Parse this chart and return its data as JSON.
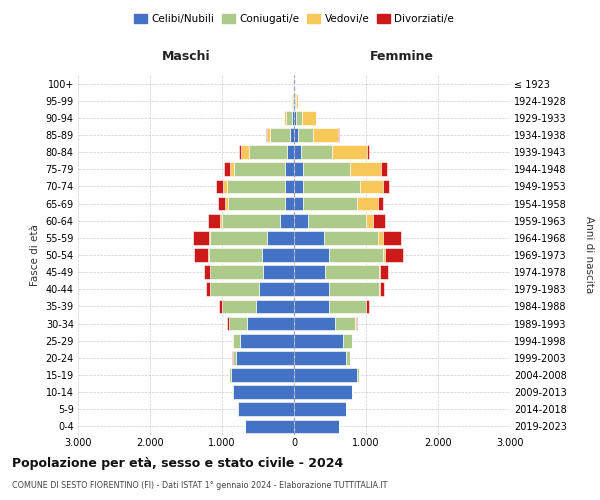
{
  "age_groups": [
    "0-4",
    "5-9",
    "10-14",
    "15-19",
    "20-24",
    "25-29",
    "30-34",
    "35-39",
    "40-44",
    "45-49",
    "50-54",
    "55-59",
    "60-64",
    "65-69",
    "70-74",
    "75-79",
    "80-84",
    "85-89",
    "90-94",
    "95-99",
    "100+"
  ],
  "birth_years": [
    "2019-2023",
    "2014-2018",
    "2009-2013",
    "2004-2008",
    "1999-2003",
    "1994-1998",
    "1989-1993",
    "1984-1988",
    "1979-1983",
    "1974-1978",
    "1969-1973",
    "1964-1968",
    "1959-1963",
    "1954-1958",
    "1949-1953",
    "1944-1948",
    "1939-1943",
    "1934-1938",
    "1929-1933",
    "1924-1928",
    "≤ 1923"
  ],
  "maschi": {
    "celibi": [
      680,
      780,
      850,
      880,
      800,
      750,
      650,
      530,
      480,
      430,
      450,
      380,
      200,
      120,
      130,
      130,
      100,
      50,
      25,
      15,
      5
    ],
    "coniugati": [
      5,
      5,
      10,
      20,
      50,
      100,
      250,
      470,
      680,
      730,
      730,
      780,
      800,
      800,
      800,
      700,
      530,
      280,
      80,
      15,
      5
    ],
    "vedovi": [
      0,
      0,
      0,
      0,
      0,
      5,
      5,
      5,
      5,
      10,
      15,
      20,
      30,
      40,
      50,
      60,
      100,
      50,
      30,
      5,
      0
    ],
    "divorziati": [
      0,
      0,
      0,
      0,
      5,
      10,
      20,
      40,
      60,
      80,
      200,
      220,
      170,
      100,
      100,
      80,
      30,
      10,
      5,
      0,
      0
    ]
  },
  "femmine": {
    "nubili": [
      620,
      720,
      800,
      880,
      720,
      680,
      570,
      480,
      480,
      430,
      480,
      420,
      200,
      120,
      130,
      130,
      100,
      60,
      25,
      15,
      5
    ],
    "coniugate": [
      5,
      5,
      10,
      20,
      60,
      120,
      280,
      520,
      700,
      750,
      750,
      750,
      800,
      760,
      780,
      650,
      430,
      200,
      80,
      10,
      5
    ],
    "vedove": [
      0,
      0,
      0,
      0,
      0,
      0,
      5,
      5,
      10,
      20,
      40,
      60,
      100,
      280,
      330,
      430,
      480,
      350,
      200,
      30,
      5
    ],
    "divorziate": [
      0,
      0,
      0,
      0,
      0,
      5,
      20,
      40,
      60,
      100,
      240,
      260,
      160,
      80,
      80,
      80,
      30,
      15,
      5,
      0,
      0
    ]
  },
  "colors": {
    "celibi": "#4472C4",
    "coniugati": "#AECA8A",
    "vedovi": "#F9C85A",
    "divorziati": "#CC1A1A"
  },
  "xlim": 3000,
  "title": "Popolazione per età, sesso e stato civile - 2024",
  "subtitle": "COMUNE DI SESTO FIORENTINO (FI) - Dati ISTAT 1° gennaio 2024 - Elaborazione TUTTITALIA.IT",
  "label_maschi": "Maschi",
  "label_femmine": "Femmine",
  "ylabel_left": "Fasce di età",
  "ylabel_right": "Anni di nascita",
  "bg_color": "#FFFFFF",
  "grid_color": "#BBBBBB",
  "legend_labels": [
    "Celibi/Nubili",
    "Coniugati/e",
    "Vedovi/e",
    "Divorziati/e"
  ]
}
